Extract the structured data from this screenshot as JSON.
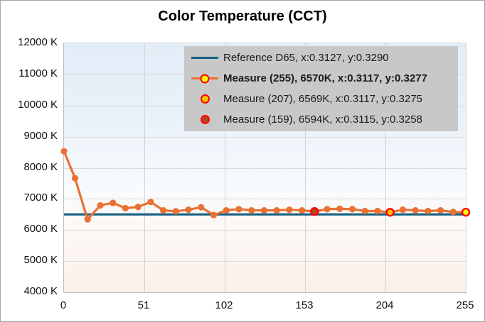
{
  "title": "Color Temperature (CCT)",
  "colors": {
    "measure_line": "#e97132",
    "reference_line": "#156082",
    "highlight_ring": "#ff0000",
    "legend_background": "#c8c8c8",
    "gridline": "#d9d9d9",
    "axis_line": "#bfbfbf"
  },
  "chart_data": {
    "type": "line",
    "title": "Color Temperature (CCT)",
    "xlabel": "",
    "ylabel": "",
    "xlim": [
      0,
      255
    ],
    "ylim": [
      4000,
      12000
    ],
    "grid": true,
    "x_ticks": [
      "0",
      "51",
      "102",
      "153",
      "204",
      "255"
    ],
    "x_tick_values": [
      0,
      51,
      102,
      153,
      204,
      255
    ],
    "y_ticks": [
      "12000 K",
      "11000 K",
      "10000 K",
      "9000 K",
      "8000 K",
      "7000 K",
      "6000 K",
      "5000 K",
      "4000 K"
    ],
    "y_tick_values": [
      12000,
      11000,
      10000,
      9000,
      8000,
      7000,
      6000,
      5000,
      4000
    ],
    "x": [
      0,
      7,
      15,
      23,
      31,
      39,
      47,
      55,
      63,
      71,
      79,
      87,
      95,
      103,
      111,
      119,
      127,
      135,
      143,
      151,
      159,
      167,
      175,
      183,
      191,
      199,
      207,
      215,
      223,
      231,
      239,
      247,
      255
    ],
    "series": [
      {
        "name": "Reference D65, x:0.3127, y:0.3290",
        "kind": "hline",
        "value": 6500,
        "color": "#156082"
      },
      {
        "name": "Measure",
        "kind": "line-markers",
        "color": "#e97132",
        "values": [
          8530,
          7660,
          6340,
          6790,
          6870,
          6700,
          6740,
          6900,
          6630,
          6600,
          6650,
          6730,
          6480,
          6630,
          6670,
          6630,
          6630,
          6630,
          6650,
          6630,
          6594,
          6670,
          6680,
          6670,
          6610,
          6610,
          6569,
          6650,
          6630,
          6610,
          6630,
          6580,
          6570
        ]
      }
    ],
    "highlight_points": [
      {
        "x": 159,
        "cct": 6594,
        "fill": "#ae4a24",
        "ring": "#ff0000"
      },
      {
        "x": 207,
        "cct": 6569,
        "fill": "#ffc000",
        "ring": "#ff0000"
      },
      {
        "x": 255,
        "cct": 6570,
        "fill": "#ffff00",
        "ring": "#ff0000"
      }
    ],
    "legend": {
      "position": "top-right",
      "entries": [
        {
          "label": "Reference D65, x:0.3127, y:0.3290",
          "bold": false,
          "swatch": "line",
          "line_color": "#156082",
          "dot_fill": null,
          "dot_ring": null
        },
        {
          "label": "Measure (255), 6570K, x:0.3117, y:0.3277",
          "bold": true,
          "swatch": "line-dot",
          "line_color": "#e97132",
          "dot_fill": "#ffff00",
          "dot_ring": "#ff0000"
        },
        {
          "label": "Measure (207), 6569K, x:0.3117, y:0.3275",
          "bold": false,
          "swatch": "dot",
          "line_color": null,
          "dot_fill": "#ffc000",
          "dot_ring": "#ff0000"
        },
        {
          "label": "Measure (159), 6594K, x:0.3115, y:0.3258",
          "bold": false,
          "swatch": "dot",
          "line_color": null,
          "dot_fill": "#ae4a24",
          "dot_ring": "#ff0000"
        }
      ]
    }
  }
}
